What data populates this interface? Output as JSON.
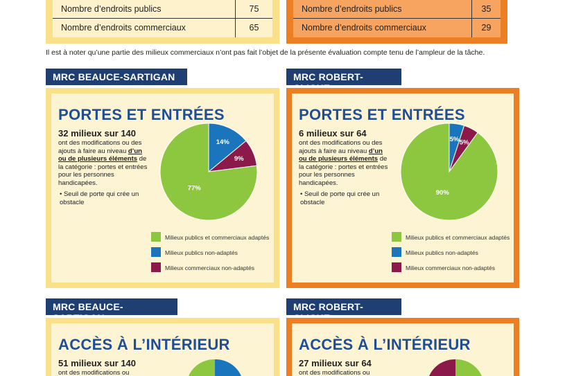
{
  "top_stats": {
    "left": {
      "rows": [
        {
          "label": "Nombre d’endroits publics",
          "value": "75"
        },
        {
          "label": "Nombre d’endroits commerciaux",
          "value": "65"
        }
      ]
    },
    "right": {
      "rows": [
        {
          "label": "Nombre d’endroits publics",
          "value": "35"
        },
        {
          "label": "Nombre d’endroits commerciaux",
          "value": "29"
        }
      ]
    }
  },
  "note": "Il est à noter qu’une partie des milieux commerciaux n’ont pas fait l’objet de la présente évaluation compte tenu de l’ampleur de la tâche.",
  "sections": [
    {
      "region": "MRC BEAUCE-SARTIGAN",
      "title": "PORTES ET ENTRÉES",
      "count": "32 milieux sur 140",
      "desc_pre": "ont des modifications ou des ajouts à faire au niveau",
      "desc_em": "d’un ou de plusieurs éléments",
      "desc_post": "de la catégorie : portes et entrées pour les personnes handicapées.",
      "bullet": "• Seuil de porte qui crée un obstacle"
    },
    {
      "region": "MRC ROBERT-CLICHE",
      "title": "PORTES ET ENTRÉES",
      "count": "6 milieux sur 64",
      "desc_pre": "ont des modifications ou des ajouts à faire au niveau",
      "desc_em": "d’un ou de plusieurs éléments",
      "desc_post": "de la catégorie : portes et entrées pour les personnes handicapées.",
      "bullet": "• Seuil de porte qui crée un obstacle"
    },
    {
      "region": "MRC BEAUCE-SARTIGAN",
      "title": "ACCÈS À L’INTÉRIEUR",
      "count": "51 milieux sur 140",
      "desc_pre": "ont des modifications ou"
    },
    {
      "region": "MRC ROBERT-CLICHE",
      "title": "ACCÈS À L’INTÉRIEUR",
      "count": "27 milieux sur 64",
      "desc_pre": "ont des modifications ou"
    }
  ],
  "legend": [
    {
      "label": "Milieux publics et commerciaux adaptés",
      "color": "#8dc63f"
    },
    {
      "label": "Milieux publics non-adaptés",
      "color": "#1b75bc"
    },
    {
      "label": "Milieux commerciaux non-adaptés",
      "color": "#8b1a4a"
    }
  ],
  "chart_data": [
    {
      "type": "pie",
      "categories": [
        "Milieux publics et commerciaux adaptés",
        "Milieux publics non-adaptés",
        "Milieux commerciaux non-adaptés"
      ],
      "values": [
        77,
        14,
        9
      ],
      "labels": [
        "77%",
        "14%",
        "9%"
      ],
      "colors": [
        "#8dc63f",
        "#1b75bc",
        "#8b1a4a"
      ],
      "legend": "bottom-right"
    },
    {
      "type": "pie",
      "categories": [
        "Milieux publics et commerciaux adaptés",
        "Milieux publics non-adaptés",
        "Milieux commerciaux non-adaptés"
      ],
      "values": [
        90,
        5,
        5
      ],
      "labels": [
        "90%",
        "5%",
        "5%"
      ],
      "colors": [
        "#8dc63f",
        "#1b75bc",
        "#8b1a4a"
      ],
      "legend": "bottom-right"
    }
  ]
}
